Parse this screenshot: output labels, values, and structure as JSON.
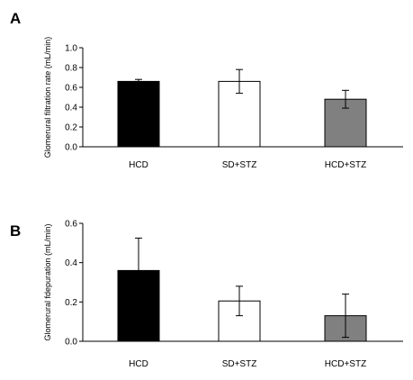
{
  "chart_data": [
    {
      "type": "bar",
      "panel_label": "A",
      "categories": [
        "HCD",
        "SD+STZ",
        "HCD+STZ"
      ],
      "values": [
        0.66,
        0.66,
        0.48
      ],
      "errors": [
        0.02,
        0.12,
        0.09
      ],
      "bar_colors": [
        "#000000",
        "#ffffff",
        "#808080"
      ],
      "ylabel": "Glomerural filtration rate (mL/min)",
      "ylim": [
        0,
        1.0
      ],
      "yticks": [
        "0.0",
        "0.2",
        "0.4",
        "0.6",
        "0.8",
        "1.0"
      ],
      "grid": false
    },
    {
      "type": "bar",
      "panel_label": "B",
      "categories": [
        "HCD",
        "SD+STZ",
        "HCD+STZ"
      ],
      "values": [
        0.36,
        0.205,
        0.13
      ],
      "errors": [
        0.165,
        0.075,
        0.11
      ],
      "bar_colors": [
        "#000000",
        "#ffffff",
        "#808080"
      ],
      "ylabel": "Glomerural fdepuration (mL/min)",
      "ylim": [
        0,
        0.6
      ],
      "yticks": [
        "0.0",
        "0.2",
        "0.4",
        "0.6"
      ],
      "grid": false
    }
  ]
}
